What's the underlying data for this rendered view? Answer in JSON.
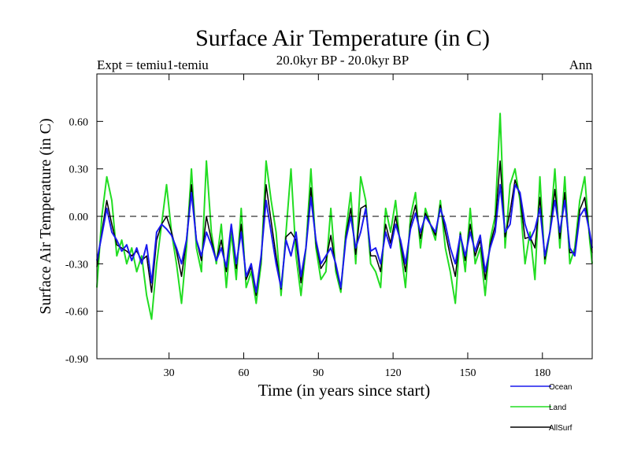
{
  "chart_data": {
    "type": "line",
    "title": "Surface Air Temperature (in C)",
    "subtitle_center": "20.0kyr BP - 20.0kyr BP",
    "subtitle_left": "Expt = temiu1-temiu",
    "subtitle_right": "Ann",
    "xlabel": "Time (in years since start)",
    "ylabel": "Surface Air Temperature (in C)",
    "xlim": [
      1,
      200
    ],
    "ylim": [
      -0.9,
      0.9
    ],
    "xticks": [
      30,
      60,
      90,
      120,
      150,
      180
    ],
    "xtick_labels": [
      "30",
      "60",
      "90",
      "120",
      "150",
      "180"
    ],
    "yticks": [
      -0.9,
      -0.6,
      -0.3,
      0.0,
      0.3,
      0.6
    ],
    "ytick_labels": [
      "-0.90",
      "-0.60",
      "-0.30",
      "0.00",
      "0.30",
      "0.60"
    ],
    "zero_line": 0.0,
    "series": [
      {
        "name": "Ocean",
        "color": "#1a1aee",
        "anchors": [
          [
            1,
            -0.28
          ],
          [
            3,
            -0.12
          ],
          [
            5,
            0.05
          ],
          [
            7,
            -0.1
          ],
          [
            9,
            -0.15
          ],
          [
            11,
            -0.22
          ],
          [
            13,
            -0.18
          ],
          [
            15,
            -0.28
          ],
          [
            17,
            -0.2
          ],
          [
            19,
            -0.3
          ],
          [
            21,
            -0.18
          ],
          [
            23,
            -0.42
          ],
          [
            25,
            -0.1
          ],
          [
            27,
            -0.05
          ],
          [
            29,
            -0.08
          ],
          [
            31,
            -0.12
          ],
          [
            33,
            -0.2
          ],
          [
            35,
            -0.3
          ],
          [
            37,
            -0.15
          ],
          [
            39,
            0.15
          ],
          [
            41,
            -0.15
          ],
          [
            43,
            -0.25
          ],
          [
            45,
            -0.1
          ],
          [
            47,
            -0.18
          ],
          [
            49,
            -0.28
          ],
          [
            51,
            -0.2
          ],
          [
            53,
            -0.32
          ],
          [
            55,
            -0.05
          ],
          [
            57,
            -0.3
          ],
          [
            59,
            -0.1
          ],
          [
            61,
            -0.38
          ],
          [
            63,
            -0.3
          ],
          [
            65,
            -0.48
          ],
          [
            67,
            -0.25
          ],
          [
            69,
            0.1
          ],
          [
            71,
            -0.1
          ],
          [
            73,
            -0.3
          ],
          [
            75,
            -0.45
          ],
          [
            77,
            -0.15
          ],
          [
            79,
            -0.25
          ],
          [
            81,
            -0.1
          ],
          [
            83,
            -0.38
          ],
          [
            85,
            -0.2
          ],
          [
            87,
            0.12
          ],
          [
            89,
            -0.15
          ],
          [
            91,
            -0.3
          ],
          [
            93,
            -0.25
          ],
          [
            95,
            -0.2
          ],
          [
            97,
            -0.3
          ],
          [
            99,
            -0.45
          ],
          [
            101,
            -0.15
          ],
          [
            103,
            0.0
          ],
          [
            105,
            -0.2
          ],
          [
            107,
            -0.1
          ],
          [
            109,
            0.05
          ],
          [
            111,
            -0.22
          ],
          [
            113,
            -0.2
          ],
          [
            115,
            -0.3
          ],
          [
            117,
            -0.1
          ],
          [
            119,
            -0.2
          ],
          [
            121,
            -0.05
          ],
          [
            123,
            -0.15
          ],
          [
            125,
            -0.3
          ],
          [
            127,
            -0.08
          ],
          [
            129,
            0.02
          ],
          [
            131,
            -0.1
          ],
          [
            133,
            0.0
          ],
          [
            135,
            -0.05
          ],
          [
            137,
            -0.1
          ],
          [
            139,
            0.05
          ],
          [
            141,
            -0.05
          ],
          [
            143,
            -0.2
          ],
          [
            145,
            -0.3
          ],
          [
            147,
            -0.12
          ],
          [
            149,
            -0.25
          ],
          [
            151,
            -0.1
          ],
          [
            153,
            -0.22
          ],
          [
            155,
            -0.12
          ],
          [
            157,
            -0.35
          ],
          [
            159,
            -0.2
          ],
          [
            161,
            -0.1
          ],
          [
            163,
            0.2
          ],
          [
            165,
            -0.1
          ],
          [
            167,
            -0.05
          ],
          [
            169,
            0.2
          ],
          [
            171,
            0.15
          ],
          [
            173,
            -0.05
          ],
          [
            175,
            -0.15
          ],
          [
            177,
            -0.08
          ],
          [
            179,
            0.05
          ],
          [
            181,
            -0.25
          ],
          [
            183,
            -0.1
          ],
          [
            185,
            0.1
          ],
          [
            187,
            -0.1
          ],
          [
            189,
            0.1
          ],
          [
            191,
            -0.2
          ],
          [
            193,
            -0.25
          ],
          [
            195,
            0.0
          ],
          [
            197,
            0.05
          ],
          [
            199,
            -0.1
          ],
          [
            200,
            -0.2
          ]
        ]
      },
      {
        "name": "Land",
        "color": "#22dd22",
        "anchors": [
          [
            1,
            -0.45
          ],
          [
            3,
            0.0
          ],
          [
            5,
            0.25
          ],
          [
            7,
            0.1
          ],
          [
            9,
            -0.25
          ],
          [
            11,
            -0.15
          ],
          [
            13,
            -0.3
          ],
          [
            15,
            -0.2
          ],
          [
            17,
            -0.35
          ],
          [
            19,
            -0.25
          ],
          [
            21,
            -0.5
          ],
          [
            23,
            -0.65
          ],
          [
            25,
            -0.3
          ],
          [
            27,
            -0.05
          ],
          [
            29,
            0.2
          ],
          [
            31,
            -0.1
          ],
          [
            33,
            -0.3
          ],
          [
            35,
            -0.55
          ],
          [
            37,
            -0.2
          ],
          [
            39,
            0.3
          ],
          [
            41,
            -0.2
          ],
          [
            43,
            -0.35
          ],
          [
            45,
            0.35
          ],
          [
            47,
            -0.1
          ],
          [
            49,
            -0.3
          ],
          [
            51,
            -0.05
          ],
          [
            53,
            -0.45
          ],
          [
            55,
            -0.1
          ],
          [
            57,
            -0.4
          ],
          [
            59,
            0.05
          ],
          [
            61,
            -0.45
          ],
          [
            63,
            -0.35
          ],
          [
            65,
            -0.55
          ],
          [
            67,
            -0.3
          ],
          [
            69,
            0.35
          ],
          [
            71,
            0.1
          ],
          [
            73,
            -0.1
          ],
          [
            75,
            -0.5
          ],
          [
            77,
            -0.1
          ],
          [
            79,
            0.3
          ],
          [
            81,
            -0.25
          ],
          [
            83,
            -0.5
          ],
          [
            85,
            -0.2
          ],
          [
            87,
            0.3
          ],
          [
            89,
            -0.2
          ],
          [
            91,
            -0.4
          ],
          [
            93,
            -0.35
          ],
          [
            95,
            0.05
          ],
          [
            97,
            -0.35
          ],
          [
            99,
            -0.48
          ],
          [
            101,
            -0.1
          ],
          [
            103,
            0.15
          ],
          [
            105,
            -0.3
          ],
          [
            107,
            0.25
          ],
          [
            109,
            0.1
          ],
          [
            111,
            -0.3
          ],
          [
            113,
            -0.35
          ],
          [
            115,
            -0.45
          ],
          [
            117,
            0.05
          ],
          [
            119,
            -0.1
          ],
          [
            121,
            0.1
          ],
          [
            123,
            -0.2
          ],
          [
            125,
            -0.45
          ],
          [
            127,
            0.0
          ],
          [
            129,
            0.15
          ],
          [
            131,
            -0.2
          ],
          [
            133,
            0.05
          ],
          [
            135,
            -0.05
          ],
          [
            137,
            -0.15
          ],
          [
            139,
            0.1
          ],
          [
            141,
            -0.2
          ],
          [
            143,
            -0.35
          ],
          [
            145,
            -0.55
          ],
          [
            147,
            -0.1
          ],
          [
            149,
            -0.35
          ],
          [
            151,
            0.05
          ],
          [
            153,
            -0.3
          ],
          [
            155,
            -0.2
          ],
          [
            157,
            -0.5
          ],
          [
            159,
            -0.15
          ],
          [
            161,
            0.0
          ],
          [
            163,
            0.65
          ],
          [
            165,
            -0.2
          ],
          [
            167,
            0.2
          ],
          [
            169,
            0.3
          ],
          [
            171,
            0.1
          ],
          [
            173,
            -0.3
          ],
          [
            175,
            -0.1
          ],
          [
            177,
            -0.4
          ],
          [
            179,
            0.25
          ],
          [
            181,
            -0.3
          ],
          [
            183,
            -0.1
          ],
          [
            185,
            0.3
          ],
          [
            187,
            -0.2
          ],
          [
            189,
            0.25
          ],
          [
            191,
            -0.3
          ],
          [
            193,
            -0.2
          ],
          [
            195,
            0.1
          ],
          [
            197,
            0.25
          ],
          [
            199,
            -0.15
          ],
          [
            200,
            -0.3
          ]
        ]
      },
      {
        "name": "AllSurf",
        "color": "#000000",
        "anchors": [
          [
            1,
            -0.32
          ],
          [
            3,
            -0.1
          ],
          [
            5,
            0.1
          ],
          [
            7,
            -0.05
          ],
          [
            9,
            -0.18
          ],
          [
            11,
            -0.2
          ],
          [
            13,
            -0.22
          ],
          [
            15,
            -0.25
          ],
          [
            17,
            -0.22
          ],
          [
            19,
            -0.28
          ],
          [
            21,
            -0.25
          ],
          [
            23,
            -0.48
          ],
          [
            25,
            -0.15
          ],
          [
            27,
            -0.05
          ],
          [
            29,
            0.0
          ],
          [
            31,
            -0.1
          ],
          [
            33,
            -0.22
          ],
          [
            35,
            -0.38
          ],
          [
            37,
            -0.15
          ],
          [
            39,
            0.2
          ],
          [
            41,
            -0.15
          ],
          [
            43,
            -0.28
          ],
          [
            45,
            0.0
          ],
          [
            47,
            -0.15
          ],
          [
            49,
            -0.28
          ],
          [
            51,
            -0.15
          ],
          [
            53,
            -0.35
          ],
          [
            55,
            -0.06
          ],
          [
            57,
            -0.33
          ],
          [
            59,
            -0.05
          ],
          [
            61,
            -0.4
          ],
          [
            63,
            -0.32
          ],
          [
            65,
            -0.5
          ],
          [
            67,
            -0.27
          ],
          [
            69,
            0.2
          ],
          [
            71,
            -0.03
          ],
          [
            73,
            -0.25
          ],
          [
            75,
            -0.46
          ],
          [
            77,
            -0.13
          ],
          [
            79,
            -0.1
          ],
          [
            81,
            -0.15
          ],
          [
            83,
            -0.42
          ],
          [
            85,
            -0.2
          ],
          [
            87,
            0.18
          ],
          [
            89,
            -0.17
          ],
          [
            91,
            -0.33
          ],
          [
            93,
            -0.28
          ],
          [
            95,
            -0.12
          ],
          [
            97,
            -0.32
          ],
          [
            99,
            -0.46
          ],
          [
            101,
            -0.13
          ],
          [
            103,
            0.05
          ],
          [
            105,
            -0.24
          ],
          [
            107,
            0.05
          ],
          [
            109,
            0.07
          ],
          [
            111,
            -0.25
          ],
          [
            113,
            -0.25
          ],
          [
            115,
            -0.35
          ],
          [
            117,
            -0.05
          ],
          [
            119,
            -0.17
          ],
          [
            121,
            0.0
          ],
          [
            123,
            -0.17
          ],
          [
            125,
            -0.35
          ],
          [
            127,
            -0.05
          ],
          [
            129,
            0.07
          ],
          [
            131,
            -0.14
          ],
          [
            133,
            0.02
          ],
          [
            135,
            -0.05
          ],
          [
            137,
            -0.12
          ],
          [
            139,
            0.07
          ],
          [
            141,
            -0.1
          ],
          [
            143,
            -0.25
          ],
          [
            145,
            -0.38
          ],
          [
            147,
            -0.11
          ],
          [
            149,
            -0.28
          ],
          [
            151,
            -0.05
          ],
          [
            153,
            -0.25
          ],
          [
            155,
            -0.15
          ],
          [
            157,
            -0.4
          ],
          [
            159,
            -0.18
          ],
          [
            161,
            -0.06
          ],
          [
            163,
            0.35
          ],
          [
            165,
            -0.13
          ],
          [
            167,
            0.03
          ],
          [
            169,
            0.23
          ],
          [
            171,
            0.13
          ],
          [
            173,
            -0.14
          ],
          [
            175,
            -0.13
          ],
          [
            177,
            -0.2
          ],
          [
            179,
            0.12
          ],
          [
            181,
            -0.27
          ],
          [
            183,
            -0.1
          ],
          [
            185,
            0.17
          ],
          [
            187,
            -0.14
          ],
          [
            189,
            0.15
          ],
          [
            191,
            -0.23
          ],
          [
            193,
            -0.23
          ],
          [
            195,
            0.04
          ],
          [
            197,
            0.12
          ],
          [
            199,
            -0.12
          ],
          [
            200,
            -0.23
          ]
        ]
      }
    ],
    "legend": [
      "Ocean",
      "Land",
      "AllSurf"
    ],
    "legend_position": "bottom-right"
  }
}
